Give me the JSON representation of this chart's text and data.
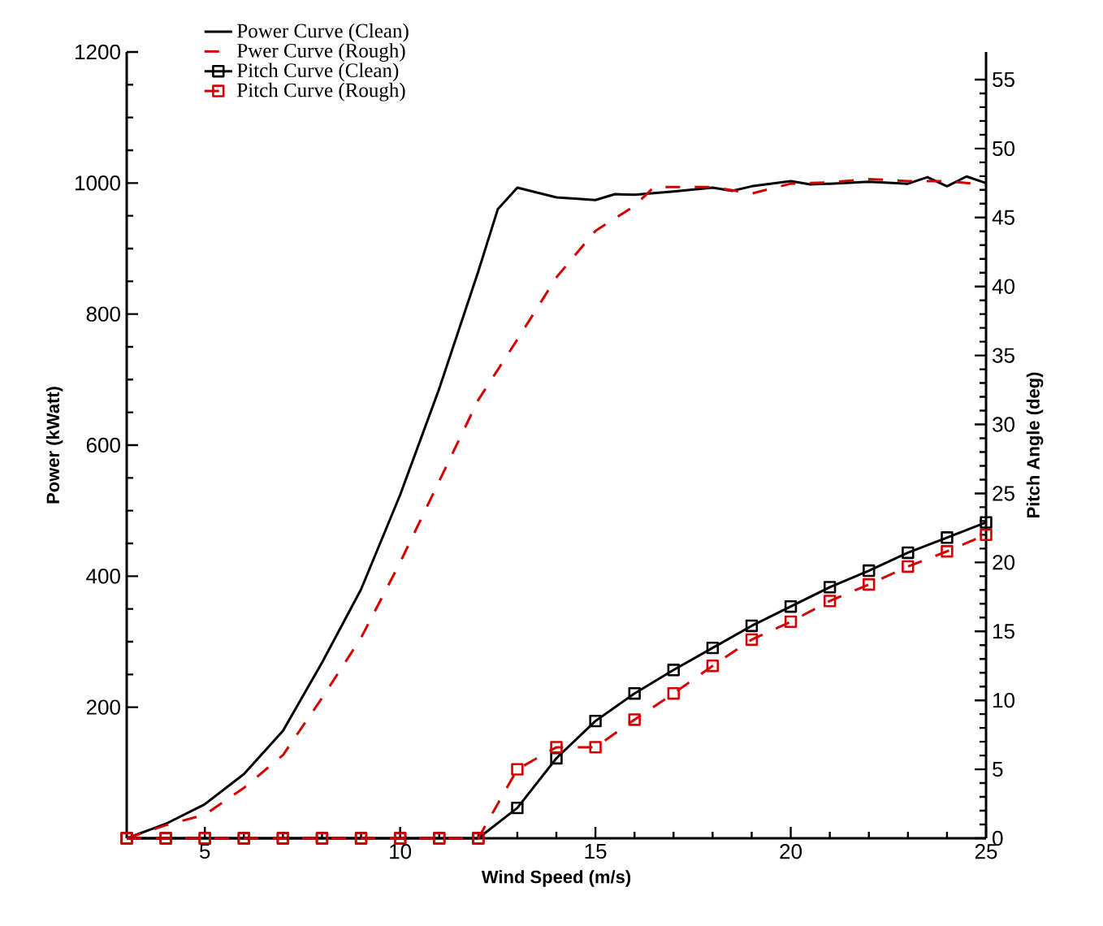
{
  "chart_data": {
    "type": "line",
    "xlabel": "Wind Speed (m/s)",
    "ylabel": "Power (kWatt)",
    "y2label": "Pitch Angle (deg)",
    "xlim": [
      3,
      25
    ],
    "xticks": [
      5,
      10,
      15,
      20,
      25
    ],
    "ylim": [
      0,
      1200
    ],
    "yticks": [
      200,
      400,
      600,
      800,
      1000,
      1200
    ],
    "y2lim": [
      0,
      57
    ],
    "y2ticks": [
      0,
      5,
      10,
      15,
      20,
      25,
      30,
      35,
      40,
      45,
      50,
      55
    ],
    "legend": "top",
    "series": [
      {
        "name": "Power Curve (Clean)",
        "color": "#000000",
        "marker": "none",
        "line_style": "solid",
        "x": [
          3,
          4,
          5,
          6,
          7,
          8,
          9,
          10,
          11,
          12,
          12.5,
          13,
          14,
          15,
          15.5,
          16,
          17,
          18,
          18.5,
          19,
          20,
          20.5,
          21,
          22,
          23,
          23.5,
          24,
          24.5,
          25
        ],
        "values": [
          0,
          22,
          52,
          98,
          164,
          268,
          380,
          524,
          686,
          865,
          960,
          993,
          978,
          974,
          983,
          982,
          987,
          993,
          988,
          995,
          1003,
          998,
          999,
          1002,
          999,
          1009,
          995,
          1010,
          1000
        ]
      },
      {
        "name": "Pwer Curve (Rough)",
        "color": "#d40000",
        "marker": "none",
        "line_style": "dashed",
        "x": [
          3,
          4,
          5,
          6,
          7,
          8,
          9,
          10,
          11,
          12,
          13,
          14,
          15,
          16,
          16.5,
          17,
          18,
          19,
          20,
          21,
          22,
          23,
          24,
          25
        ],
        "values": [
          0,
          20,
          36,
          77,
          127,
          214,
          306,
          421,
          545,
          669,
          761,
          856,
          927,
          965,
          994,
          994,
          994,
          984,
          999,
          1001,
          1006,
          1003,
          1003,
          997
        ]
      },
      {
        "name": "Pitch Curve (Clean)",
        "color": "#000000",
        "marker": "square",
        "line_style": "solid",
        "axis": "y2",
        "x": [
          3,
          4,
          5,
          6,
          7,
          8,
          9,
          10,
          11,
          12,
          13,
          14,
          15,
          16,
          17,
          18,
          19,
          20,
          21,
          22,
          23,
          24,
          25
        ],
        "values": [
          0,
          0,
          0,
          0,
          0,
          0,
          0,
          0,
          0,
          0,
          2.2,
          5.8,
          8.5,
          10.5,
          12.2,
          13.8,
          15.4,
          16.8,
          18.2,
          19.4,
          20.7,
          21.8,
          22.9
        ]
      },
      {
        "name": "Pitch Curve (Rough)",
        "color": "#d40000",
        "marker": "square",
        "line_style": "dashed",
        "axis": "y2",
        "x": [
          3,
          4,
          5,
          6,
          7,
          8,
          9,
          10,
          11,
          12,
          13,
          14,
          15,
          16,
          17,
          18,
          19,
          20,
          21,
          22,
          23,
          24,
          25
        ],
        "values": [
          0,
          0,
          0,
          0,
          0,
          0,
          0,
          0,
          0,
          0,
          5.0,
          6.6,
          6.6,
          8.6,
          10.5,
          12.5,
          14.4,
          15.7,
          17.2,
          18.4,
          19.7,
          20.8,
          22.0
        ]
      }
    ]
  }
}
